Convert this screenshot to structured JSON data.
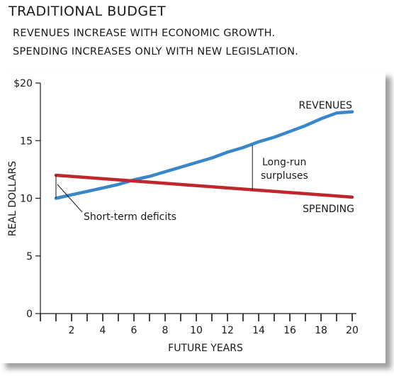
{
  "header": {
    "title": "TRADITIONAL BUDGET",
    "subtitle_line1": "REVENUES INCREASE WITH ECONOMIC GROWTH.",
    "subtitle_line2": "SPENDING INCREASES ONLY WITH NEW LEGISLATION."
  },
  "chart_data": {
    "type": "line",
    "title": "TRADITIONAL BUDGET",
    "subtitle": "REVENUES INCREASE WITH ECONOMIC GROWTH. SPENDING INCREASES ONLY WITH NEW LEGISLATION.",
    "xlabel": "FUTURE YEARS",
    "ylabel": "REAL DOLLARS",
    "xlim": [
      0,
      20
    ],
    "ylim": [
      0,
      20
    ],
    "x_ticks": [
      2,
      4,
      6,
      8,
      10,
      12,
      14,
      16,
      18,
      20
    ],
    "x_tick_labels": [
      "2",
      "4",
      "6",
      "8",
      "10",
      "12",
      "14",
      "16",
      "18",
      "20"
    ],
    "y_ticks": [
      0,
      5,
      10,
      15,
      20
    ],
    "y_tick_labels": [
      "0",
      "5",
      "10",
      "15",
      "$20"
    ],
    "grid": false,
    "series": [
      {
        "name": "REVENUES",
        "color": "#3a87c8",
        "x": [
          1,
          2,
          3,
          4,
          5,
          6,
          7,
          8,
          9,
          10,
          11,
          12,
          13,
          14,
          15,
          16,
          17,
          18,
          19,
          20
        ],
        "values": [
          10.0,
          10.3,
          10.6,
          10.9,
          11.2,
          11.6,
          11.9,
          12.3,
          12.7,
          13.1,
          13.5,
          14.0,
          14.4,
          14.9,
          15.3,
          15.8,
          16.3,
          16.9,
          17.4,
          17.5
        ]
      },
      {
        "name": "SPENDING",
        "color": "#c0272d",
        "x": [
          1,
          2,
          3,
          4,
          5,
          6,
          7,
          8,
          9,
          10,
          11,
          12,
          13,
          14,
          15,
          16,
          17,
          18,
          19,
          20
        ],
        "values": [
          12.0,
          11.9,
          11.8,
          11.7,
          11.6,
          11.5,
          11.4,
          11.3,
          11.2,
          11.1,
          11.0,
          10.9,
          10.8,
          10.7,
          10.6,
          10.5,
          10.4,
          10.3,
          10.2,
          10.1
        ]
      }
    ],
    "annotations": [
      {
        "text": "Short-term deficits",
        "x": 1,
        "y_top": 12.0,
        "y_bottom": 10.0
      },
      {
        "text_line1": "Long-run",
        "text_line2": "surpluses",
        "x": 13.6,
        "y_top": 14.6,
        "y_bottom": 10.7
      }
    ]
  }
}
